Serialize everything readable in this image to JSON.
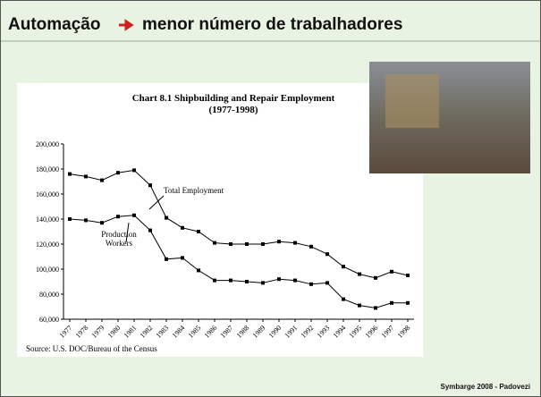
{
  "slide": {
    "title_left": "Automação",
    "title_right": "menor número de trabalhadores",
    "footer": "Symbarge 2008 - Padovezi"
  },
  "chart_data": {
    "type": "line",
    "title": "Chart 8.1  Shipbuilding and Repair Employment",
    "subtitle": "(1977-1998)",
    "source": "Source: U.S. DOC/Bureau of the Census",
    "categories": [
      "1977",
      "1978",
      "1979",
      "1980",
      "1981",
      "1982",
      "1983",
      "1984",
      "1985",
      "1986",
      "1987",
      "1988",
      "1989",
      "1990",
      "1991",
      "1992",
      "1993",
      "1994",
      "1995",
      "1996",
      "1997",
      "1998"
    ],
    "series": [
      {
        "name": "Total Employment",
        "color": "#000000",
        "values": [
          176000,
          174000,
          171000,
          177000,
          179000,
          167000,
          141000,
          133000,
          130000,
          121000,
          120000,
          120000,
          120000,
          122000,
          121000,
          118000,
          112000,
          102000,
          96000,
          93000,
          98000,
          95000
        ]
      },
      {
        "name": "Production Workers",
        "color": "#000000",
        "values": [
          140000,
          139000,
          137000,
          142000,
          143000,
          131000,
          108000,
          109000,
          99000,
          91000,
          91000,
          90000,
          89000,
          92000,
          91000,
          88000,
          89000,
          76000,
          71000,
          69000,
          73000,
          73000
        ]
      }
    ],
    "ylim": [
      60000,
      200000
    ],
    "yticks": [
      {
        "value": 60000,
        "label": "60,000"
      },
      {
        "value": 80000,
        "label": "80,000"
      },
      {
        "value": 100000,
        "label": "100,000"
      },
      {
        "value": 120000,
        "label": "120,000"
      },
      {
        "value": 140000,
        "label": "140,000"
      },
      {
        "value": 160000,
        "label": "160,000"
      },
      {
        "value": 180000,
        "label": "180,000"
      },
      {
        "value": 200000,
        "label": "200,000"
      }
    ],
    "grid": false
  }
}
